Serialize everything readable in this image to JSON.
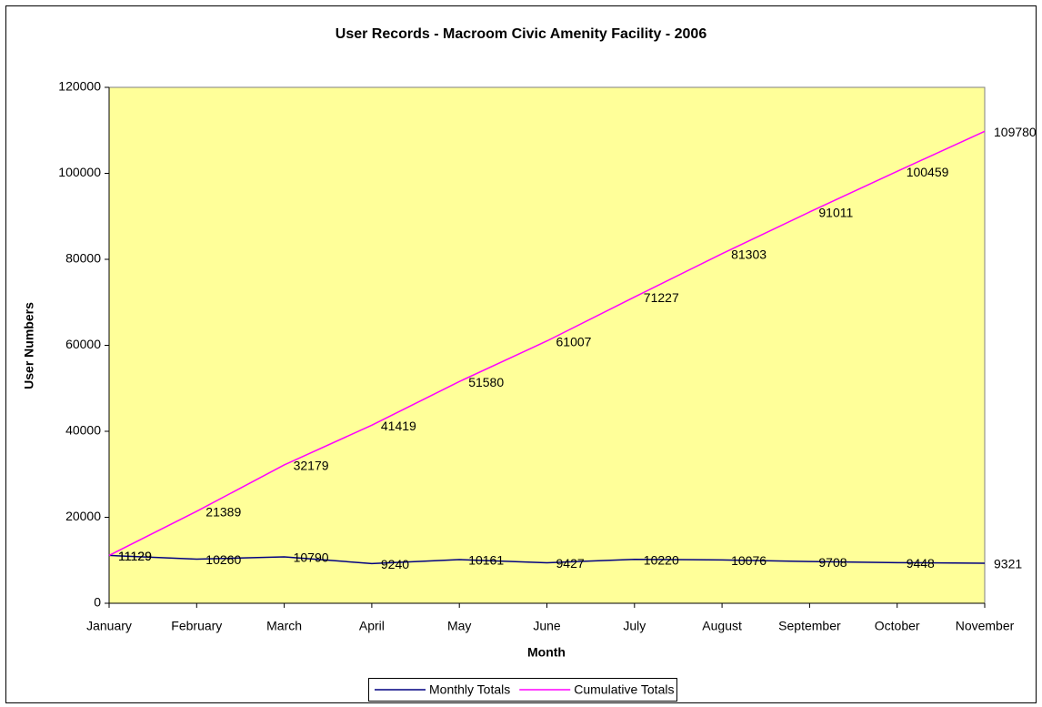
{
  "chart_data": {
    "type": "line",
    "title": "User Records - Macroom Civic Amenity Facility - 2006",
    "x_label": "Month",
    "y_label": "User Numbers",
    "categories": [
      "January",
      "February",
      "March",
      "April",
      "May",
      "June",
      "July",
      "August",
      "September",
      "October",
      "November"
    ],
    "series": [
      {
        "name": "Monthly Totals",
        "color": "#000080",
        "values": [
          11129,
          10260,
          10790,
          9240,
          10161,
          9427,
          10220,
          10076,
          9708,
          9448,
          9321
        ]
      },
      {
        "name": "Cumulative Totals",
        "color": "#ff00ff",
        "values": [
          11129,
          21389,
          32179,
          41419,
          51580,
          61007,
          71227,
          81303,
          91011,
          100459,
          109780
        ]
      }
    ],
    "ylim": [
      0,
      120000
    ],
    "yticks": [
      0,
      20000,
      40000,
      60000,
      80000,
      100000,
      120000
    ],
    "plot_background": "#ffff99",
    "legend": "bottom"
  }
}
